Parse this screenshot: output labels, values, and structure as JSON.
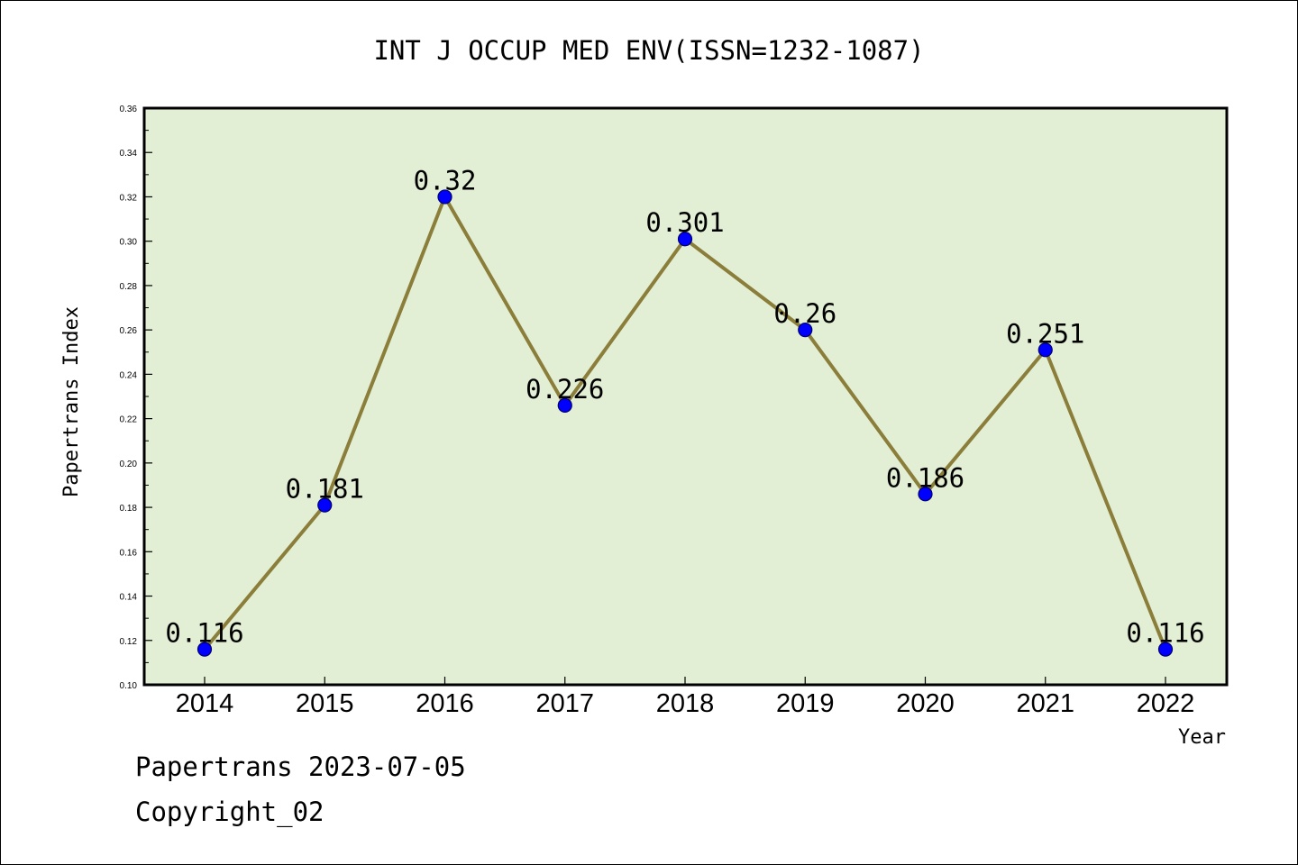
{
  "colors": {
    "plot_background": "#e2efd4",
    "line": "#8b7d3a",
    "marker": "#0000ff",
    "axis": "#000000"
  },
  "chart_data": {
    "type": "line",
    "title": "INT J OCCUP MED ENV(ISSN=1232-1087)",
    "xlabel": "Year",
    "ylabel": "Papertrans Index",
    "categories": [
      "2014",
      "2015",
      "2016",
      "2017",
      "2018",
      "2019",
      "2020",
      "2021",
      "2022"
    ],
    "series": [
      {
        "values": [
          0.116,
          0.181,
          0.32,
          0.226,
          0.301,
          0.26,
          0.186,
          0.251,
          0.116
        ],
        "data_labels": [
          "0.116",
          "0.181",
          "0.32",
          "0.226",
          "0.301",
          "0.26",
          "0.186",
          "0.251",
          "0.116"
        ]
      }
    ],
    "ylim": [
      0.1,
      0.36
    ],
    "yticks": [
      "0.10",
      "0.12",
      "0.14",
      "0.16",
      "0.18",
      "0.20",
      "0.22",
      "0.24",
      "0.26",
      "0.28",
      "0.30",
      "0.32",
      "0.34",
      "0.36"
    ],
    "grid": false,
    "legend": "none"
  },
  "footer": {
    "date_text": "Papertrans 2023-07-05",
    "copyright_text": "Copyright_02"
  }
}
